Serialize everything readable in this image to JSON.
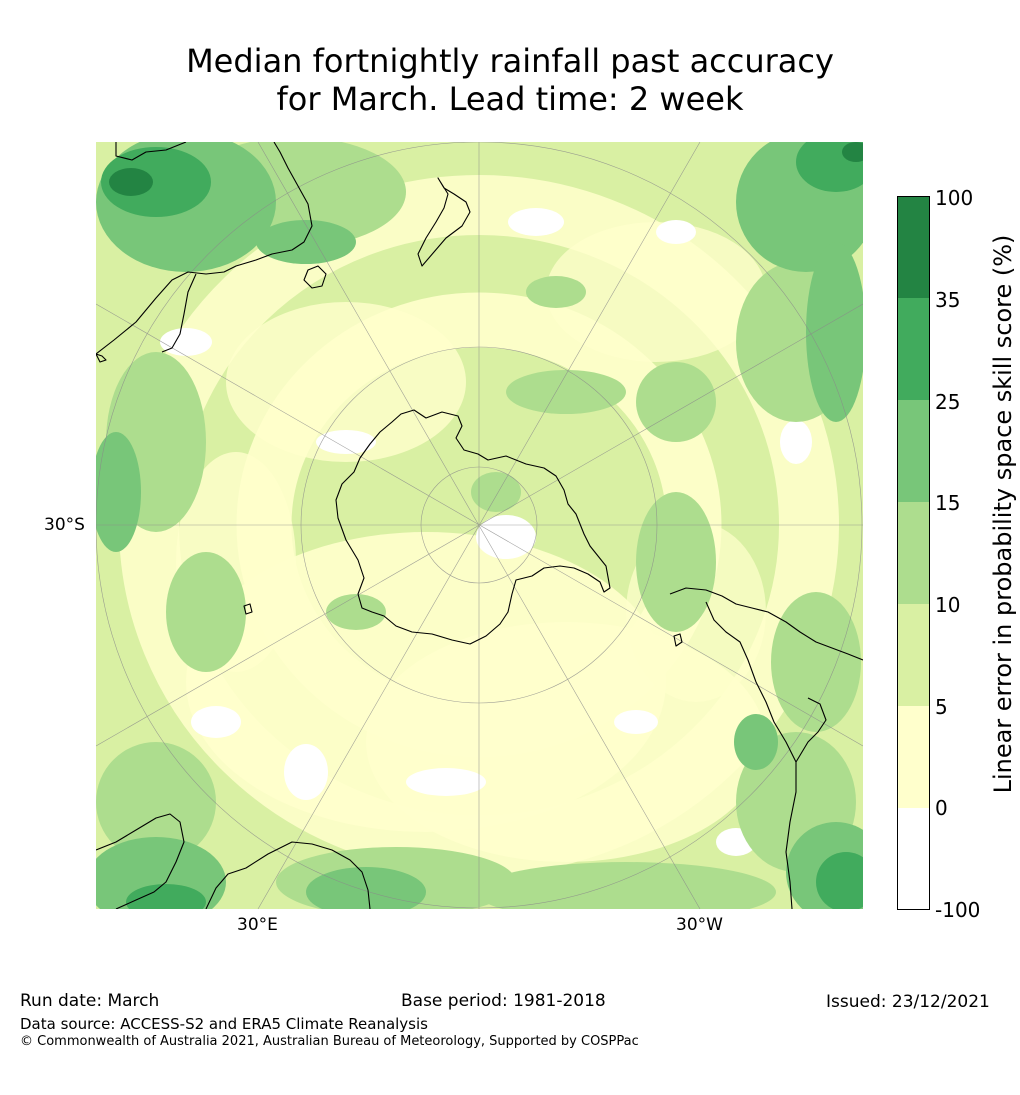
{
  "title": {
    "line1": "Median fortnightly rainfall past accuracy",
    "line2": "for March. Lead time: 2 week"
  },
  "map": {
    "projection": "south-polar-stereographic",
    "region": "Southern Hemisphere centred on Antarctica",
    "labels": {
      "lat_30s": "30°S",
      "lon_30e": "30°E",
      "lon_30w": "30°W"
    },
    "coastline_color": "#000000",
    "graticule_color": "#8a8a8a"
  },
  "colorbar": {
    "label": "Linear error in probability space skill score (%)",
    "ticks": [
      "100",
      "35",
      "25",
      "15",
      "10",
      "5",
      "0",
      "-100"
    ],
    "bins": [
      {
        "from": -100,
        "to": 0,
        "color": "#ffffff"
      },
      {
        "from": 0,
        "to": 5,
        "color": "#ffffcc"
      },
      {
        "from": 5,
        "to": 10,
        "color": "#d9f0a3"
      },
      {
        "from": 10,
        "to": 15,
        "color": "#addd8e"
      },
      {
        "from": 15,
        "to": 25,
        "color": "#78c679"
      },
      {
        "from": 25,
        "to": 35,
        "color": "#41ab5d"
      },
      {
        "from": 35,
        "to": 100,
        "color": "#238443"
      }
    ]
  },
  "footer": {
    "run_date": "Run date: March",
    "base_period": "Base period: 1981-2018",
    "issued": "Issued: 23/12/2021",
    "data_source": "Data source: ACCESS-S2 and ERA5 Climate Reanalysis",
    "copyright": "© Commonwealth of Australia 2021, Australian Bureau of Meteorology, Supported by COSPPac"
  }
}
